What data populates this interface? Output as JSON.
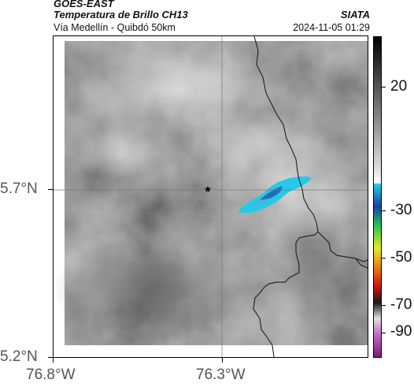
{
  "header": {
    "satellite": "GOES-EAST",
    "product": "Temperatura de Brillo CH13",
    "road": "Vía Medellín - Quibdó 50km",
    "source": "SIATA",
    "timestamp": "2024-11-05 01:29"
  },
  "axes": {
    "y_ticks": [
      "5.7°N",
      "5.2°N"
    ],
    "x_ticks": [
      "76.8°W",
      "76.3°W"
    ]
  },
  "colorbar": {
    "tick_labels": [
      "20",
      "-30",
      "-50",
      "-70",
      "-90"
    ],
    "tick_values": [
      20,
      -30,
      -50,
      -70,
      -90
    ]
  },
  "colors": {
    "cold_cloud_cyan": "#27c9e6",
    "deep_cloud_blue": "#1f6fb8",
    "background_gray": "#7a7a7a"
  }
}
